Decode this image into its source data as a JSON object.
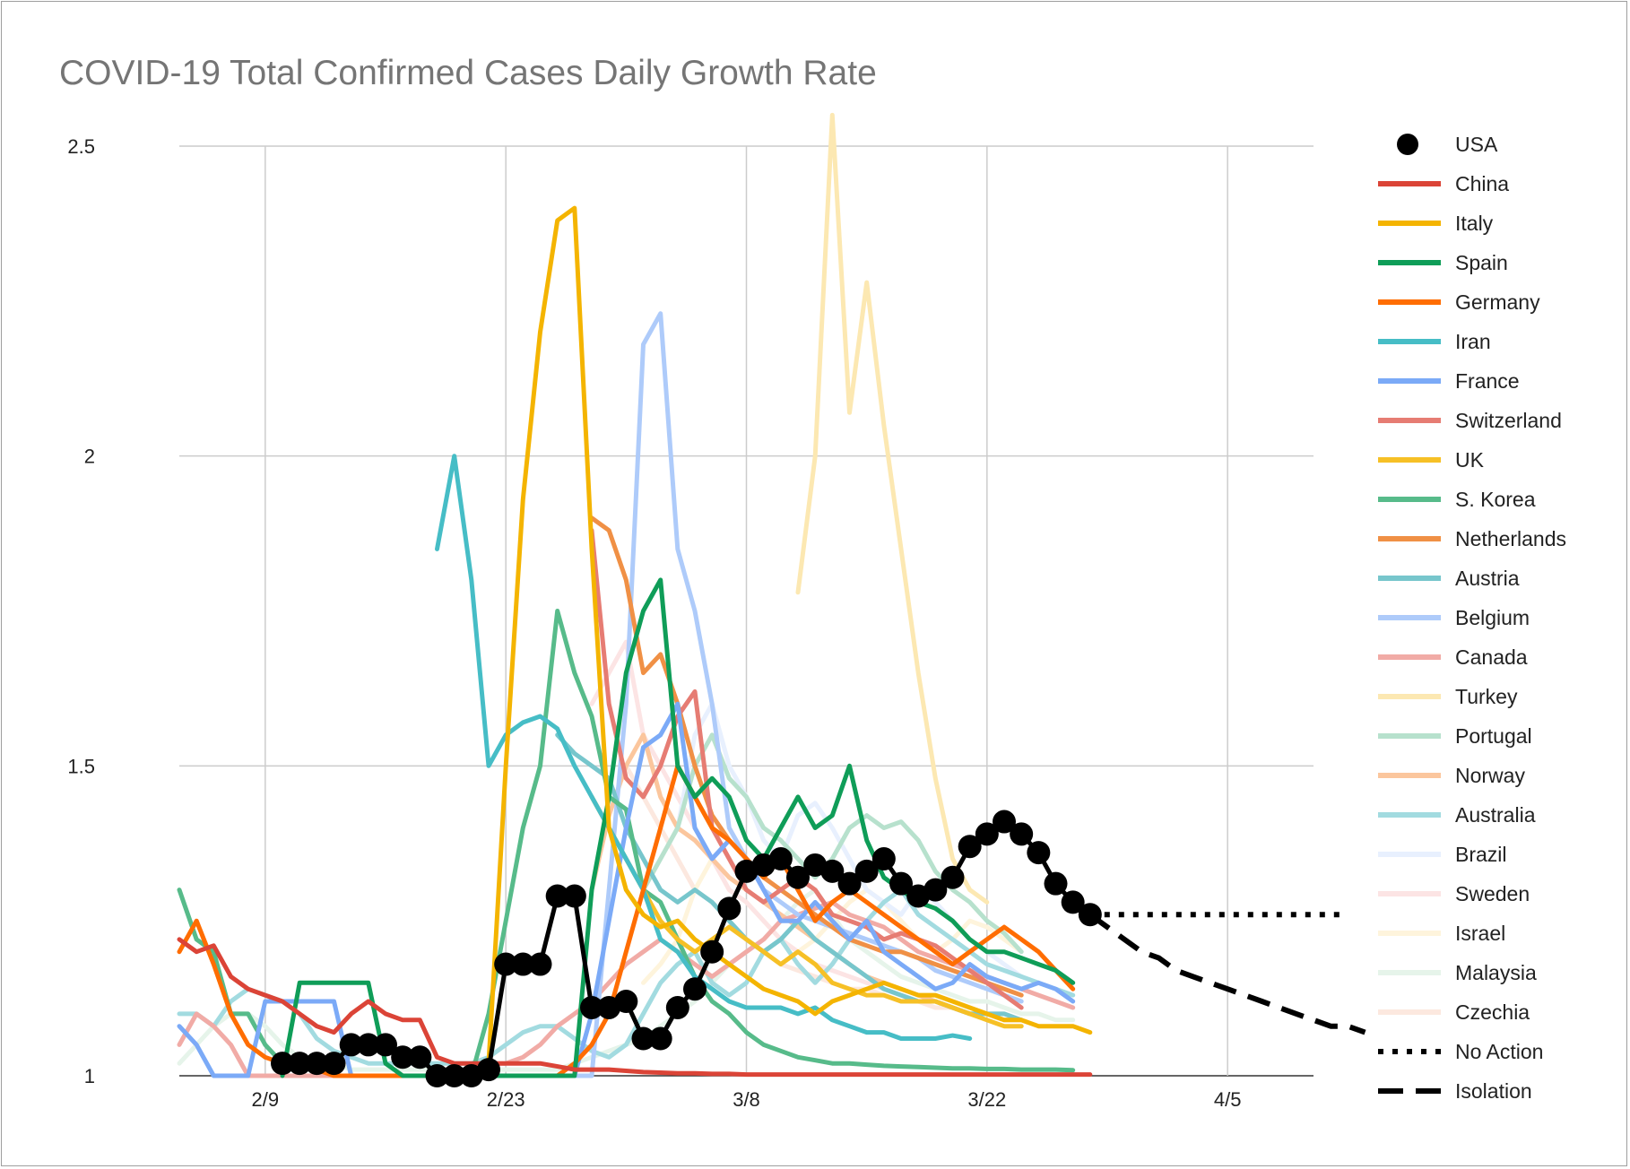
{
  "chart_data": {
    "type": "line",
    "title": "COVID-19 Total Confirmed Cases Daily Growth Rate",
    "xlabel": "",
    "ylabel": "",
    "x_start": "2/4",
    "x_end": "4/10",
    "x_ticks": [
      "2/9",
      "2/23",
      "3/8",
      "3/22",
      "4/5"
    ],
    "y_ticks": [
      "1",
      "1.5",
      "2",
      "2.5"
    ],
    "ylim": [
      1,
      2.5
    ],
    "grid": true,
    "legend_position": "right",
    "series": [
      {
        "name": "China",
        "color": "#db4437",
        "style": "line",
        "start": "2/4",
        "values": [
          1.22,
          1.2,
          1.21,
          1.16,
          1.14,
          1.13,
          1.12,
          1.1,
          1.08,
          1.07,
          1.1,
          1.12,
          1.1,
          1.09,
          1.09,
          1.03,
          1.02,
          1.02,
          1.02,
          1.02,
          1.02,
          1.02,
          1.015,
          1.01,
          1.01,
          1.01,
          1.008,
          1.006,
          1.005,
          1.004,
          1.004,
          1.003,
          1.003,
          1.002,
          1.002,
          1.002,
          1.002,
          1.002,
          1.002,
          1.002,
          1.002,
          1.002,
          1.002,
          1.002,
          1.002,
          1.002,
          1.002,
          1.002,
          1.002,
          1.002,
          1.002,
          1.002,
          1.002,
          1.002
        ]
      },
      {
        "name": "Italy",
        "color": "#f4b400",
        "style": "line",
        "start": "2/21",
        "values": [
          1.0,
          1.02,
          1.5,
          1.93,
          2.2,
          2.38,
          2.4,
          1.85,
          1.4,
          1.3,
          1.26,
          1.24,
          1.25,
          1.22,
          1.2,
          1.18,
          1.16,
          1.14,
          1.13,
          1.12,
          1.1,
          1.12,
          1.13,
          1.14,
          1.15,
          1.14,
          1.13,
          1.13,
          1.12,
          1.11,
          1.1,
          1.09,
          1.09,
          1.08,
          1.08,
          1.08,
          1.07
        ]
      },
      {
        "name": "Spain",
        "color": "#0f9d58",
        "style": "line",
        "start": "2/10",
        "values": [
          1.0,
          1.15,
          1.15,
          1.15,
          1.15,
          1.15,
          1.02,
          1.0,
          1.0,
          1.0,
          1.0,
          1.0,
          1.0,
          1.0,
          1.0,
          1.0,
          1.0,
          1.0,
          1.3,
          1.45,
          1.65,
          1.75,
          1.8,
          1.5,
          1.45,
          1.48,
          1.45,
          1.38,
          1.35,
          1.4,
          1.45,
          1.4,
          1.42,
          1.5,
          1.38,
          1.32,
          1.3,
          1.28,
          1.27,
          1.25,
          1.22,
          1.2,
          1.2,
          1.19,
          1.18,
          1.17,
          1.15
        ]
      },
      {
        "name": "Germany",
        "color": "#ff6d01",
        "style": "line",
        "start": "2/4",
        "values": [
          1.2,
          1.25,
          1.18,
          1.1,
          1.05,
          1.03,
          1.02,
          1.02,
          1.01,
          1.0,
          1.0,
          1.0,
          1.0,
          1.0,
          1.0,
          1.0,
          1.0,
          1.0,
          1.0,
          1.0,
          1.0,
          1.0,
          1.0,
          1.02,
          1.05,
          1.1,
          1.2,
          1.3,
          1.4,
          1.5,
          1.45,
          1.4,
          1.38,
          1.35,
          1.32,
          1.35,
          1.3,
          1.25,
          1.28,
          1.3,
          1.28,
          1.26,
          1.24,
          1.22,
          1.2,
          1.18,
          1.2,
          1.22,
          1.24,
          1.22,
          1.2,
          1.17,
          1.14
        ]
      },
      {
        "name": "Iran",
        "color": "#46bdc6",
        "style": "line",
        "start": "2/19",
        "values": [
          1.85,
          2.0,
          1.8,
          1.5,
          1.55,
          1.57,
          1.58,
          1.56,
          1.5,
          1.45,
          1.4,
          1.35,
          1.3,
          1.22,
          1.2,
          1.16,
          1.14,
          1.12,
          1.11,
          1.11,
          1.11,
          1.1,
          1.11,
          1.09,
          1.08,
          1.07,
          1.07,
          1.06,
          1.06,
          1.06,
          1.065,
          1.06
        ]
      },
      {
        "name": "France",
        "color": "#7baaf7",
        "style": "line",
        "start": "2/4",
        "values": [
          1.08,
          1.05,
          1.0,
          1.0,
          1.0,
          1.12,
          1.12,
          1.12,
          1.12,
          1.12,
          1.0,
          1.0,
          1.0,
          1.0,
          1.0,
          1.0,
          1.0,
          1.0,
          1.0,
          1.0,
          1.0,
          1.0,
          1.0,
          1.0,
          1.1,
          1.25,
          1.4,
          1.53,
          1.55,
          1.6,
          1.4,
          1.35,
          1.38,
          1.35,
          1.3,
          1.25,
          1.25,
          1.28,
          1.25,
          1.22,
          1.25,
          1.2,
          1.18,
          1.16,
          1.14,
          1.15,
          1.18,
          1.16,
          1.15,
          1.14,
          1.15,
          1.14,
          1.12
        ]
      },
      {
        "name": "Switzerland",
        "color": "#e67c73",
        "style": "line",
        "start": "2/28",
        "values": [
          1.88,
          1.6,
          1.48,
          1.45,
          1.5,
          1.58,
          1.62,
          1.4,
          1.35,
          1.3,
          1.28,
          1.3,
          1.32,
          1.3,
          1.26,
          1.25,
          1.24,
          1.22,
          1.23,
          1.22,
          1.21,
          1.19,
          1.17,
          1.15,
          1.13,
          1.11
        ]
      },
      {
        "name": "UK",
        "color": "#f6c026",
        "style": "line",
        "start": "2/28",
        "values": [
          1.45,
          1.4,
          1.35,
          1.3,
          1.25,
          1.22,
          1.2,
          1.22,
          1.24,
          1.22,
          1.2,
          1.18,
          1.2,
          1.18,
          1.15,
          1.14,
          1.13,
          1.13,
          1.12,
          1.12,
          1.12,
          1.11,
          1.1,
          1.09,
          1.08,
          1.08
        ]
      },
      {
        "name": "S. Korea",
        "color": "#57bb8a",
        "style": "line",
        "start": "2/4",
        "values": [
          1.3,
          1.22,
          1.2,
          1.1,
          1.1,
          1.05,
          1.02,
          1.02,
          1.02,
          1.0,
          1.0,
          1.0,
          1.0,
          1.0,
          1.0,
          1.0,
          1.0,
          1.0,
          1.1,
          1.25,
          1.4,
          1.5,
          1.75,
          1.65,
          1.58,
          1.45,
          1.43,
          1.3,
          1.28,
          1.22,
          1.16,
          1.12,
          1.1,
          1.07,
          1.05,
          1.04,
          1.03,
          1.025,
          1.02,
          1.02,
          1.018,
          1.016,
          1.015,
          1.014,
          1.013,
          1.012,
          1.012,
          1.011,
          1.011,
          1.01,
          1.01,
          1.01,
          1.009
        ]
      },
      {
        "name": "Netherlands",
        "color": "#f09045",
        "style": "line",
        "start": "2/28",
        "values": [
          1.9,
          1.88,
          1.8,
          1.65,
          1.68,
          1.6,
          1.5,
          1.42,
          1.38,
          1.35,
          1.32,
          1.3,
          1.28,
          1.26,
          1.24,
          1.22,
          1.21,
          1.2,
          1.2,
          1.19,
          1.18,
          1.17,
          1.16,
          1.15,
          1.14,
          1.13
        ]
      },
      {
        "name": "Austria",
        "color": "#77c6cc",
        "style": "line",
        "start": "2/26",
        "values": [
          1.55,
          1.52,
          1.5,
          1.48,
          1.4,
          1.35,
          1.3,
          1.28,
          1.3,
          1.28,
          1.25,
          1.22,
          1.2,
          1.22,
          1.25,
          1.22,
          1.2,
          1.18,
          1.16,
          1.14,
          1.13,
          1.12,
          1.12,
          1.11,
          1.1,
          1.1,
          1.1,
          1.09
        ]
      },
      {
        "name": "Belgium",
        "color": "#aecbfa",
        "style": "line",
        "start": "2/27",
        "values": [
          1.0,
          1.0,
          1.3,
          1.6,
          2.18,
          2.23,
          1.85,
          1.75,
          1.6,
          1.4,
          1.35,
          1.3,
          1.28,
          1.26,
          1.25,
          1.24,
          1.23,
          1.22,
          1.21,
          1.2,
          1.19,
          1.17,
          1.16,
          1.15,
          1.14,
          1.13,
          1.12
        ]
      },
      {
        "name": "Canada",
        "color": "#f1aba6",
        "style": "line",
        "start": "2/4",
        "values": [
          1.05,
          1.1,
          1.08,
          1.05,
          1.0,
          1.0,
          1.0,
          1.0,
          1.0,
          1.0,
          1.0,
          1.0,
          1.0,
          1.0,
          1.0,
          1.0,
          1.0,
          1.0,
          1.02,
          1.02,
          1.03,
          1.05,
          1.08,
          1.1,
          1.12,
          1.15,
          1.18,
          1.2,
          1.22,
          1.2,
          1.18,
          1.16,
          1.18,
          1.2,
          1.22,
          1.25,
          1.26,
          1.27,
          1.28,
          1.26,
          1.25,
          1.24,
          1.22,
          1.2,
          1.19,
          1.18,
          1.17,
          1.16,
          1.15,
          1.14,
          1.13,
          1.12,
          1.11
        ]
      },
      {
        "name": "Turkey",
        "color": "#fce8b2",
        "style": "line",
        "start": "3/11",
        "values": [
          1.78,
          2.0,
          2.55,
          2.07,
          2.28,
          2.05,
          1.85,
          1.65,
          1.48,
          1.35,
          1.3,
          1.28
        ]
      },
      {
        "name": "Portugal",
        "color": "#b7e1cd",
        "style": "line",
        "start": "3/2",
        "values": [
          1.3,
          1.35,
          1.4,
          1.5,
          1.55,
          1.48,
          1.45,
          1.4,
          1.38,
          1.35,
          1.32,
          1.35,
          1.4,
          1.42,
          1.4,
          1.41,
          1.38,
          1.33,
          1.3,
          1.28,
          1.25,
          1.23,
          1.2
        ]
      },
      {
        "name": "Norway",
        "color": "#fbc69d",
        "style": "line",
        "start": "2/28",
        "values": [
          1.3,
          1.42,
          1.5,
          1.55,
          1.45,
          1.4,
          1.38,
          1.35,
          1.32,
          1.3,
          1.28,
          1.26,
          1.24,
          1.22,
          1.2,
          1.18,
          1.16,
          1.15,
          1.14,
          1.13,
          1.12,
          1.11,
          1.1,
          1.1,
          1.09,
          1.09
        ]
      },
      {
        "name": "Australia",
        "color": "#a2dbe0",
        "style": "line",
        "start": "2/4",
        "values": [
          1.1,
          1.1,
          1.08,
          1.12,
          1.14,
          1.13,
          1.12,
          1.1,
          1.06,
          1.04,
          1.03,
          1.02,
          1.02,
          1.02,
          1.02,
          1.02,
          1.02,
          1.02,
          1.03,
          1.05,
          1.07,
          1.08,
          1.08,
          1.06,
          1.04,
          1.03,
          1.05,
          1.1,
          1.15,
          1.18,
          1.2,
          1.15,
          1.13,
          1.15,
          1.2,
          1.22,
          1.18,
          1.15,
          1.18,
          1.22,
          1.25,
          1.28,
          1.3,
          1.26,
          1.24,
          1.22,
          1.2,
          1.18,
          1.17,
          1.16,
          1.15,
          1.14,
          1.13
        ]
      },
      {
        "name": "Brazil",
        "color": "#e8f0fe",
        "style": "line",
        "start": "3/4",
        "values": [
          1.4,
          1.55,
          1.6,
          1.5,
          1.45,
          1.38,
          1.35,
          1.42,
          1.44,
          1.4,
          1.35,
          1.3,
          1.28,
          1.26,
          1.3,
          1.28,
          1.25,
          1.22,
          1.2,
          1.18,
          1.16
        ]
      },
      {
        "name": "Sweden",
        "color": "#fce4e4",
        "style": "line",
        "start": "2/28",
        "values": [
          1.6,
          1.65,
          1.7,
          1.55,
          1.5,
          1.45,
          1.4,
          1.35,
          1.3,
          1.28,
          1.25,
          1.22,
          1.2,
          1.18,
          1.17,
          1.16,
          1.15,
          1.14,
          1.13,
          1.12,
          1.12,
          1.11,
          1.1,
          1.1,
          1.09,
          1.09
        ]
      },
      {
        "name": "Israel",
        "color": "#fef4dc",
        "style": "line",
        "start": "3/2",
        "values": [
          1.15,
          1.18,
          1.22,
          1.3,
          1.35,
          1.3,
          1.28,
          1.25,
          1.22,
          1.2,
          1.22,
          1.25,
          1.28,
          1.3,
          1.28,
          1.25,
          1.22,
          1.2,
          1.22,
          1.25,
          1.24,
          1.22,
          1.2
        ]
      },
      {
        "name": "Malaysia",
        "color": "#e6f4ea",
        "style": "line",
        "start": "2/4",
        "values": [
          1.02,
          1.05,
          1.08,
          1.1,
          1.1,
          1.08,
          1.05,
          1.03,
          1.02,
          1.02,
          1.01,
          1.01,
          1.01,
          1.01,
          1.01,
          1.01,
          1.01,
          1.01,
          1.01,
          1.01,
          1.01,
          1.01,
          1.01,
          1.02,
          1.03,
          1.04,
          1.05,
          1.06,
          1.08,
          1.1,
          1.12,
          1.15,
          1.18,
          1.2,
          1.22,
          1.25,
          1.28,
          1.3,
          1.26,
          1.22,
          1.2,
          1.18,
          1.16,
          1.15,
          1.14,
          1.13,
          1.12,
          1.12,
          1.11,
          1.1,
          1.1,
          1.09,
          1.09
        ]
      },
      {
        "name": "Czechia",
        "color": "#fce8df",
        "style": "line",
        "start": "3/1",
        "values": [
          1.5,
          1.45,
          1.4,
          1.35,
          1.3,
          1.28,
          1.25,
          1.22,
          1.2,
          1.18,
          1.17,
          1.16,
          1.15,
          1.14,
          1.14,
          1.13,
          1.12,
          1.12,
          1.11,
          1.11,
          1.1,
          1.1,
          1.1,
          1.09
        ]
      },
      {
        "name": "USA",
        "color": "#000000",
        "style": "markers",
        "start": "2/10",
        "values": [
          1.02,
          1.02,
          1.02,
          1.02,
          1.05,
          1.05,
          1.05,
          1.03,
          1.03,
          1.0,
          1.0,
          1.0,
          1.01,
          1.18,
          1.18,
          1.18,
          1.29,
          1.29,
          1.11,
          1.11,
          1.12,
          1.06,
          1.06,
          1.11,
          1.14,
          1.2,
          1.27,
          1.33,
          1.34,
          1.35,
          1.32,
          1.34,
          1.33,
          1.31,
          1.33,
          1.35,
          1.31,
          1.29,
          1.3,
          1.32,
          1.37,
          1.39,
          1.41,
          1.39,
          1.36,
          1.31,
          1.28,
          1.26
        ]
      },
      {
        "name": "No Action",
        "color": "#000000",
        "style": "dotted",
        "start": "3/28",
        "values": [
          1.26,
          1.26,
          1.26,
          1.26,
          1.26,
          1.26,
          1.26,
          1.26,
          1.26,
          1.26,
          1.26,
          1.26,
          1.26,
          1.26,
          1.26,
          1.26
        ]
      },
      {
        "name": "Isolation",
        "color": "#000000",
        "style": "dashed",
        "start": "3/28",
        "values": [
          1.26,
          1.24,
          1.22,
          1.2,
          1.19,
          1.17,
          1.16,
          1.15,
          1.14,
          1.13,
          1.12,
          1.11,
          1.1,
          1.09,
          1.08,
          1.08,
          1.07
        ]
      }
    ]
  }
}
